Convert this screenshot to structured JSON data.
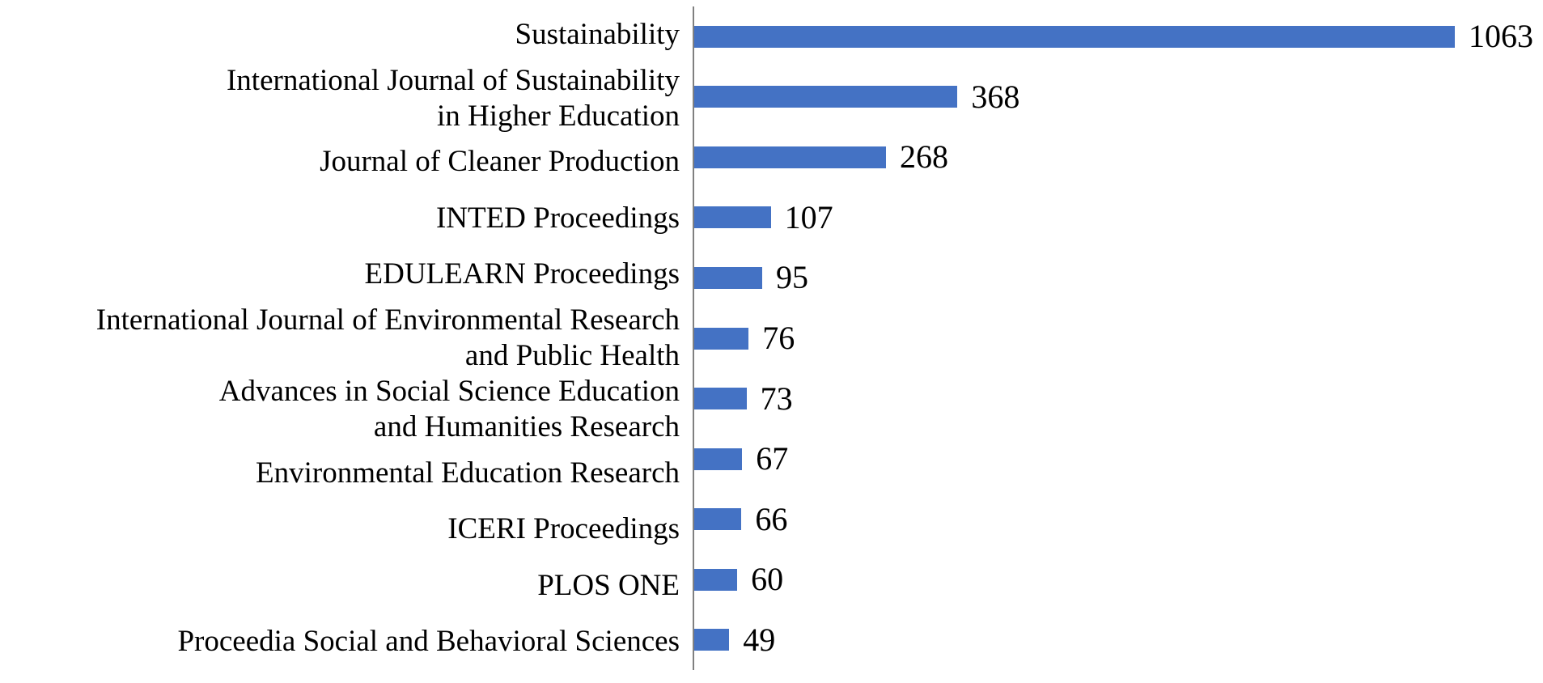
{
  "chart_data": {
    "type": "bar",
    "orientation": "horizontal",
    "title": "",
    "xlabel": "",
    "ylabel": "",
    "categories": [
      "Sustainability",
      "International Journal of Sustainability in Higher Education",
      "Journal of Cleaner Production",
      "INTED Proceedings",
      "EDULEARN Proceedings",
      "International Journal of Environmental Research and Public Health",
      "Advances in Social Science Education and Humanities Research",
      "Environmental Education Research",
      "ICERI Proceedings",
      "PLOS ONE",
      "Proceedia Social and Behavioral Sciences"
    ],
    "category_label_lines": [
      [
        "Sustainability"
      ],
      [
        "International Journal of Sustainability",
        "in Higher Education"
      ],
      [
        "Journal of Cleaner Production"
      ],
      [
        "INTED Proceedings"
      ],
      [
        "EDULEARN Proceedings"
      ],
      [
        "International Journal of Environmental Research",
        "and Public Health"
      ],
      [
        "Advances in Social Science Education",
        "and Humanities Research"
      ],
      [
        "Environmental Education Research"
      ],
      [
        "ICERI Proceedings"
      ],
      [
        "PLOS ONE"
      ],
      [
        "Proceedia Social and Behavioral Sciences"
      ]
    ],
    "values": [
      1063,
      368,
      268,
      107,
      95,
      76,
      73,
      67,
      66,
      60,
      49
    ],
    "data_labels_visible": true,
    "legend": "none",
    "grid": "off",
    "bar_color": "#4472C4",
    "axis_line_color": "#808080",
    "text_color": "#000000",
    "background_color": "#FFFFFF"
  }
}
